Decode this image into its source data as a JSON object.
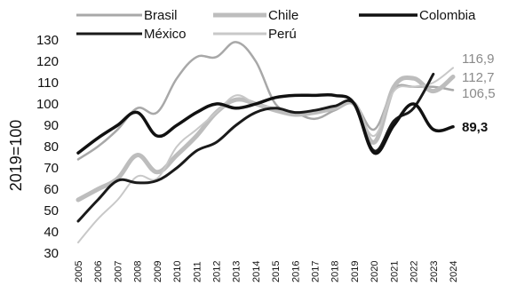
{
  "chart_data": {
    "type": "line",
    "title": "",
    "xlabel": "",
    "ylabel": "2019=100",
    "ylim": [
      30,
      130
    ],
    "yticks": [
      "30",
      "40",
      "50",
      "60",
      "70",
      "80",
      "90",
      "100",
      "110",
      "120",
      "130"
    ],
    "grid": false,
    "legend_position": "top",
    "x": [
      "2005",
      "2006",
      "2007",
      "2008",
      "2009",
      "2010",
      "2011",
      "2012",
      "2013",
      "2014",
      "2015",
      "2016",
      "2017",
      "2018",
      "2019",
      "2020",
      "2021",
      "2022",
      "2023",
      "2024"
    ],
    "series": [
      {
        "name": "Brasil",
        "color": "#a8a8a8",
        "width": 2.5,
        "values": [
          74,
          80,
          88,
          98,
          96,
          112,
          122,
          122,
          129,
          120,
          100,
          96,
          93,
          97,
          100,
          88,
          107,
          108,
          108,
          106.5
        ],
        "end_label": "106,5"
      },
      {
        "name": "Chile",
        "color": "#bdbdbd",
        "width": 5,
        "values": [
          55,
          60,
          65,
          76,
          68,
          76,
          85,
          96,
          102,
          100,
          97,
          95,
          96,
          98,
          100,
          82,
          108,
          112,
          106,
          112.7
        ],
        "end_label": "112,7"
      },
      {
        "name": "Colombia",
        "color": "#111111",
        "width": 3.5,
        "values": [
          77,
          84,
          90,
          96,
          85,
          90,
          96,
          100,
          98,
          100,
          103,
          104,
          104,
          104,
          100,
          77,
          90,
          100,
          88,
          89.3
        ],
        "end_label": "89,3"
      },
      {
        "name": "México",
        "color": "#1a1a1a",
        "width": 3,
        "values": [
          45,
          55,
          64,
          63,
          64,
          70,
          78,
          82,
          90,
          96,
          98,
          96,
          97,
          99,
          100,
          78,
          92,
          98,
          114,
          null
        ],
        "end_label": ""
      },
      {
        "name": "Perú",
        "color": "#c8c8c8",
        "width": 2,
        "values": [
          35,
          46,
          55,
          66,
          65,
          80,
          88,
          96,
          104,
          100,
          98,
          96,
          97,
          99,
          100,
          85,
          106,
          108,
          110,
          116.9
        ],
        "end_label": "116,9"
      }
    ]
  }
}
